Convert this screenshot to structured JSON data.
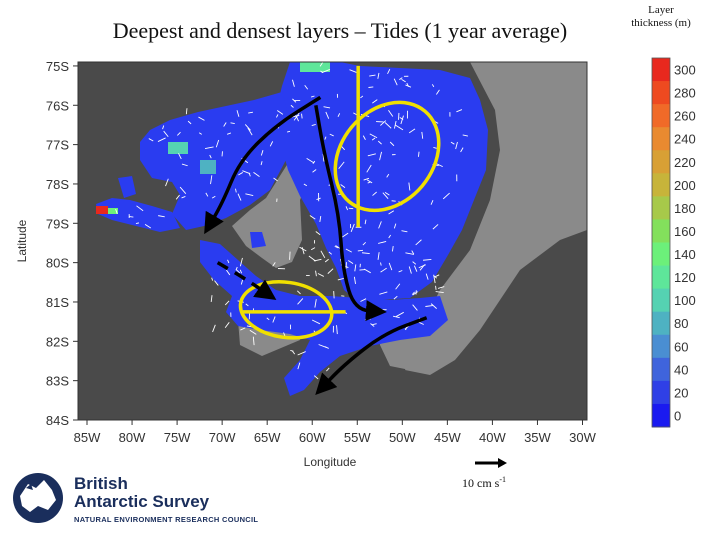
{
  "chart_data": {
    "type": "heatmap",
    "title": "Deepest and densest layers – Tides (1 year average)",
    "xlabel": "Longitude",
    "ylabel": "Latitude",
    "x_ticks": [
      "85W",
      "80W",
      "75W",
      "70W",
      "65W",
      "60W",
      "55W",
      "50W",
      "45W",
      "40W",
      "35W",
      "30W"
    ],
    "x_values": [
      -85,
      -80,
      -75,
      -70,
      -65,
      -60,
      -55,
      -50,
      -45,
      -40,
      -35,
      -30
    ],
    "y_ticks": [
      "75S",
      "76S",
      "77S",
      "78S",
      "79S",
      "80S",
      "81S",
      "82S",
      "83S",
      "84S"
    ],
    "y_values": [
      -75,
      -76,
      -77,
      -78,
      -79,
      -80,
      -81,
      -82,
      -83,
      -84
    ],
    "xlim": [
      -86,
      -29.5
    ],
    "ylim": [
      -84,
      -74.9
    ],
    "colorbar": {
      "title": "Layer thickness (m)",
      "ticks": [
        "300",
        "280",
        "260",
        "240",
        "220",
        "200",
        "180",
        "160",
        "140",
        "120",
        "100",
        "80",
        "60",
        "40",
        "20",
        "0"
      ],
      "values": [
        300,
        280,
        260,
        240,
        220,
        200,
        180,
        160,
        140,
        120,
        100,
        80,
        60,
        40,
        20,
        0
      ],
      "colors": [
        "#e8281e",
        "#ee4a20",
        "#f06a28",
        "#e98a30",
        "#d8a035",
        "#c7b43a",
        "#a7c94a",
        "#83e05c",
        "#6cf07a",
        "#5ee69a",
        "#55d2b2",
        "#4eb2c2",
        "#4a8ed2",
        "#3f64dc",
        "#2f40e6",
        "#1a1af0"
      ]
    },
    "vector_reference": {
      "label": "10 cm s",
      "exponent": "-1",
      "value": 10
    },
    "annotations": {
      "yellow_lines": [
        {
          "lon1": -54.9,
          "lat1": -75.0,
          "lon2": -54.9,
          "lat2": -79.1
        },
        {
          "lon1": -67.7,
          "lat1": -81.25,
          "lon2": -56.3,
          "lat2": -81.25
        }
      ],
      "yellow_ellipses": [
        {
          "center_lon": -51.7,
          "center_lat": -77.3,
          "semi_lon": 5.1,
          "semi_lat": 1.5,
          "angle": 40
        },
        {
          "center_lon": -62.9,
          "center_lat": -81.2,
          "semi_lon": 5.1,
          "semi_lat": 0.7,
          "angle": 8
        }
      ],
      "black_paths": [
        {
          "points": [
            [
              -59.1,
              -75.8
            ],
            [
              -64,
              -76.5
            ],
            [
              -68,
              -77.4
            ],
            [
              -70,
              -78.5
            ],
            [
              -71.8,
              -79.2
            ]
          ],
          "dashed": false
        },
        {
          "points": [
            [
              -59.6,
              -76.0
            ],
            [
              -58.7,
              -77.2
            ],
            [
              -57,
              -78.8
            ],
            [
              -56.6,
              -80.2
            ],
            [
              -55.3,
              -81.2
            ],
            [
              -52.1,
              -81.25
            ]
          ],
          "dashed": false
        },
        {
          "points": [
            [
              -70.5,
              -80.0
            ],
            [
              -67.5,
              -80.4
            ],
            [
              -64.3,
              -80.9
            ]
          ],
          "dashed": true
        },
        {
          "points": [
            [
              -47.3,
              -81.4
            ],
            [
              -52,
              -81.8
            ],
            [
              -56.5,
              -82.6
            ],
            [
              -59.4,
              -83.3
            ]
          ],
          "dashed": false
        }
      ]
    }
  },
  "logo": {
    "line1": "British",
    "line2": "Antarctic Survey",
    "line3": "NATURAL ENVIRONMENT RESEARCH COUNCIL"
  },
  "colors": {
    "ice_shelf": "#4a4a4a",
    "land": "#8a8a8a",
    "flow_blue": "#2a3cf0",
    "arrow_white": "#ffffff",
    "annotation_yellow": "#f0e000",
    "annotation_black": "#000000"
  }
}
